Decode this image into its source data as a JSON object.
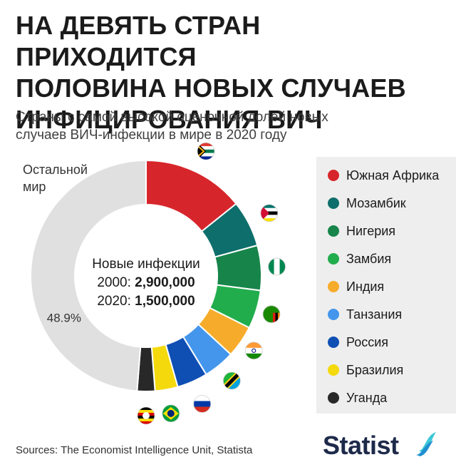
{
  "title_lines": [
    "НА ДЕВЯТЬ СТРАН ПРИХОДИТСЯ",
    "ПОЛОВИНА НОВЫХ СЛУЧАЕВ",
    "ИНФИЦИРОВАНИЯ ВИЧ"
  ],
  "subtitle_lines": [
    "Страны с самой высокой оценочной долей новых",
    "случаев ВИЧ-инфекции в мире в 2020 году"
  ],
  "center": {
    "heading": "Новые инфекции",
    "row1_year": "2000:",
    "row1_value": "2,900,000",
    "row2_year": "2020:",
    "row2_value": "1,500,000"
  },
  "rest": {
    "label_lines": [
      "Остальной",
      "мир"
    ],
    "percent": "48.9%"
  },
  "source": "Sources: The Economist Intelligence Unit, Statista",
  "logo": "Statist",
  "chart_data": {
    "type": "pie",
    "donut": true,
    "unit": "% of new HIV infections, 2020",
    "slices": [
      {
        "name": "Южная Африка",
        "value": 14.3,
        "color": "#d7262b",
        "flag": "south-africa-flag"
      },
      {
        "name": "Мозамбик",
        "value": 6.5,
        "color": "#0e6e6b",
        "flag": "mozambique-flag"
      },
      {
        "name": "Нигерия",
        "value": 6.3,
        "color": "#17854a",
        "flag": "nigeria-flag"
      },
      {
        "name": "Замбия",
        "value": 5.4,
        "color": "#22ad4d",
        "flag": "zambia-flag"
      },
      {
        "name": "Индия",
        "value": 4.5,
        "color": "#f6ac2a",
        "flag": "india-flag"
      },
      {
        "name": "Танзания",
        "value": 4.4,
        "color": "#4496ec",
        "flag": "tanzania-flag"
      },
      {
        "name": "Россия",
        "value": 4.3,
        "color": "#0f4fb4",
        "flag": "russia-flag"
      },
      {
        "name": "Бразилия",
        "value": 3.2,
        "color": "#f4d90c",
        "flag": "brazil-flag"
      },
      {
        "name": "Уганда",
        "value": 2.5,
        "color": "#282828",
        "flag": "uganda-flag"
      },
      {
        "name": "Остальной мир",
        "value": 48.9,
        "color": "#e0e0e0",
        "flag": ""
      }
    ],
    "legend": [
      {
        "name": "Южная Африка",
        "color": "#d7262b"
      },
      {
        "name": "Мозамбик",
        "color": "#0e6e6b"
      },
      {
        "name": "Нигерия",
        "color": "#17854a"
      },
      {
        "name": "Замбия",
        "color": "#22ad4d"
      },
      {
        "name": "Индия",
        "color": "#f6ac2a"
      },
      {
        "name": "Танзания",
        "color": "#4496ec"
      },
      {
        "name": "Россия",
        "color": "#0f4fb4"
      },
      {
        "name": "Бразилия",
        "color": "#f4d90c"
      },
      {
        "name": "Уганда",
        "color": "#282828"
      }
    ],
    "legend_placement": "right"
  }
}
